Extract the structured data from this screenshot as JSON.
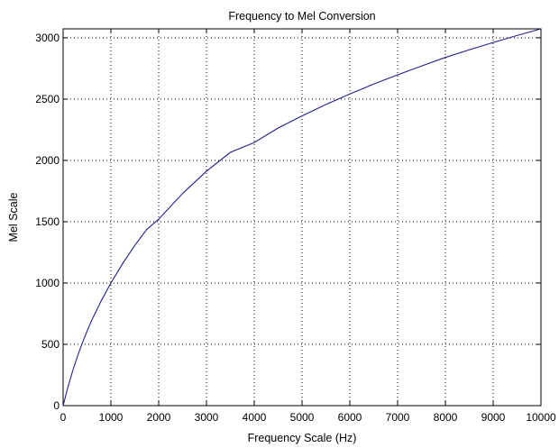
{
  "chart_data": {
    "type": "line",
    "title": "Frequency to Mel Conversion",
    "xlabel": "Frequency Scale (Hz)",
    "ylabel": "Mel Scale",
    "xlim": [
      0,
      10000
    ],
    "ylim": [
      0,
      3073
    ],
    "x_ticks": [
      0,
      1000,
      2000,
      3000,
      4000,
      5000,
      6000,
      7000,
      8000,
      9000,
      10000
    ],
    "y_ticks": [
      0,
      500,
      1000,
      1500,
      2000,
      2500,
      3000
    ],
    "grid": true,
    "series": [
      {
        "color": "#1f1f8f",
        "x": [
          0,
          100,
          200,
          300,
          400,
          500,
          600,
          800,
          1000,
          1250,
          1500,
          1750,
          2000,
          2500,
          3000,
          3500,
          4000,
          4500,
          5000,
          5500,
          6000,
          6500,
          7000,
          7500,
          8000,
          8500,
          9000,
          9500,
          10000
        ],
        "y": [
          0,
          150,
          283,
          402,
          509,
          607,
          697,
          857,
          1000,
          1161,
          1306,
          1437,
          1521,
          1730,
          1912,
          2066,
          2146,
          2264,
          2363,
          2456,
          2542,
          2623,
          2698,
          2770,
          2840,
          2902,
          2962,
          3019,
          3073
        ]
      }
    ]
  }
}
